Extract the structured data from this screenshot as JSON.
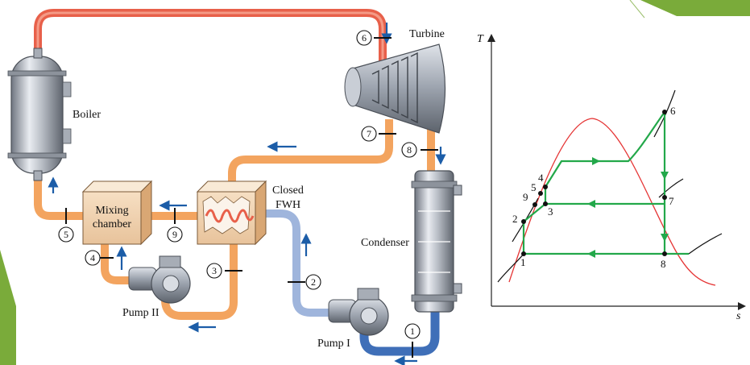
{
  "components": {
    "turbine": "Turbine",
    "boiler": "Boiler",
    "mixing_chamber_line1": "Mixing",
    "mixing_chamber_line2": "chamber",
    "closed_fwh_line1": "Closed",
    "closed_fwh_line2": "FWH",
    "condenser": "Condenser",
    "pump_1": "Pump I",
    "pump_2": "Pump II"
  },
  "state_markers": [
    "1",
    "2",
    "3",
    "4",
    "5",
    "6",
    "7",
    "8",
    "9"
  ],
  "ts_diagram": {
    "x_axis": "s",
    "y_axis": "T",
    "points": [
      "1",
      "2",
      "3",
      "4",
      "5",
      "6",
      "7",
      "8",
      "9"
    ]
  },
  "colors": {
    "hot_pipe": "#e8604a",
    "warm_pipe": "#f3a45f",
    "cool_pipe": "#9fb5dc",
    "cold_pipe": "#3f6fb8",
    "arrow": "#1c5da8",
    "process_line": "#23a84a",
    "dome_curve": "#e53535",
    "accent_corner": "#7aab3a"
  }
}
